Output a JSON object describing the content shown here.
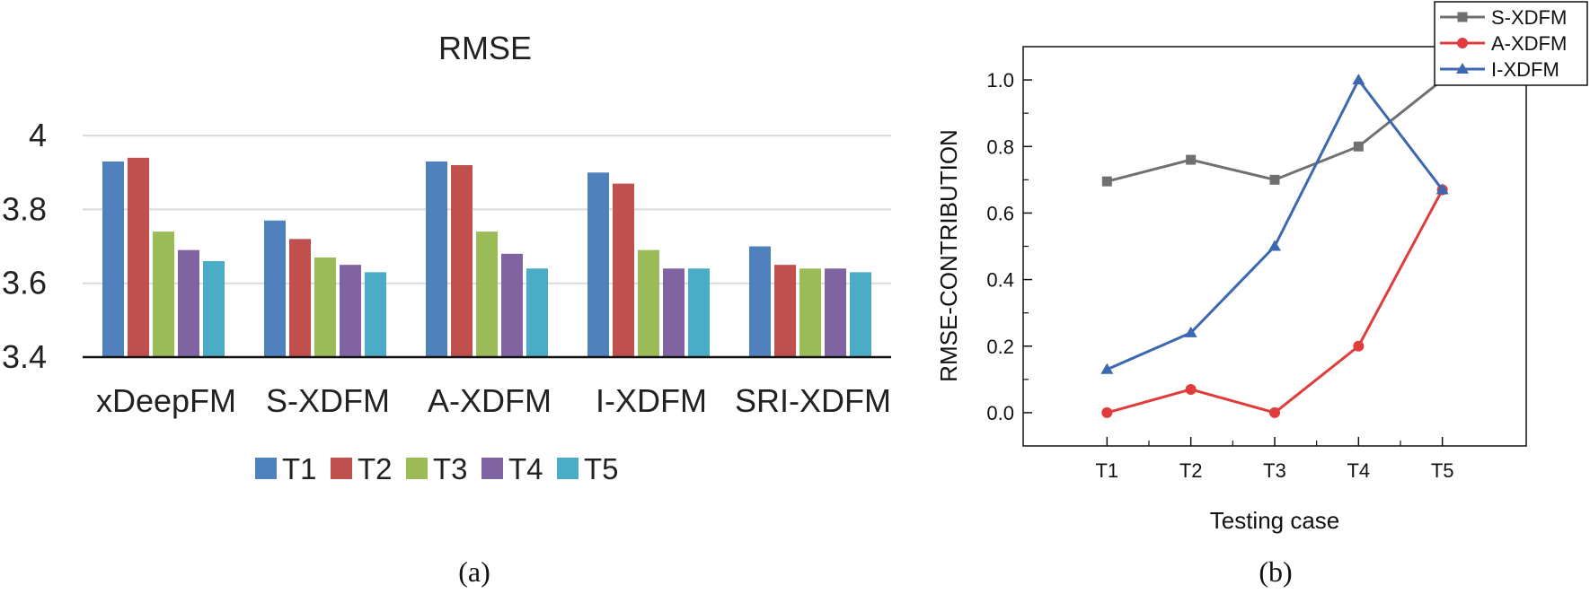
{
  "panels": {
    "a_caption": "(a)",
    "b_caption": "(b)"
  },
  "chart_data": [
    {
      "type": "bar",
      "title": "RMSE",
      "categories": [
        "xDeepFM",
        "S-XDFM",
        "A-XDFM",
        "I-XDFM",
        "SRI-XDFM"
      ],
      "series": [
        {
          "name": "T1",
          "color": "#4f81bd",
          "values": [
            3.93,
            3.77,
            3.93,
            3.9,
            3.7
          ]
        },
        {
          "name": "T2",
          "color": "#c0504d",
          "values": [
            3.94,
            3.72,
            3.92,
            3.87,
            3.65
          ]
        },
        {
          "name": "T3",
          "color": "#9bbb59",
          "values": [
            3.74,
            3.67,
            3.74,
            3.69,
            3.64
          ]
        },
        {
          "name": "T4",
          "color": "#8064a2",
          "values": [
            3.69,
            3.65,
            3.68,
            3.64,
            3.64
          ]
        },
        {
          "name": "T5",
          "color": "#4bacc6",
          "values": [
            3.66,
            3.63,
            3.64,
            3.64,
            3.63
          ]
        }
      ],
      "ylim": [
        3.4,
        4.1
      ],
      "yticks": [
        3.4,
        3.6,
        3.8,
        4.0
      ],
      "ytick_labels": [
        "3.4",
        "3.6",
        "3.8",
        "4"
      ],
      "grid": true,
      "legend_position": "bottom"
    },
    {
      "type": "line",
      "xlabel": "Testing case",
      "ylabel": "RMSE-CONTRIBUTION",
      "x": [
        "T1",
        "T2",
        "T3",
        "T4",
        "T5"
      ],
      "series": [
        {
          "name": "S-XDFM",
          "color": "#707070",
          "marker": "square",
          "values": [
            0.695,
            0.76,
            0.7,
            0.8,
            1.0
          ]
        },
        {
          "name": "A-XDFM",
          "color": "#e03c3c",
          "marker": "circle",
          "values": [
            0.0,
            0.07,
            0.0,
            0.2,
            0.67
          ]
        },
        {
          "name": "I-XDFM",
          "color": "#3b68b0",
          "marker": "triangle",
          "values": [
            0.13,
            0.24,
            0.5,
            1.0,
            0.67
          ]
        }
      ],
      "ylim": [
        -0.1,
        1.1
      ],
      "yticks": [
        0.0,
        0.2,
        0.4,
        0.6,
        0.8,
        1.0
      ],
      "ytick_labels": [
        "0.0",
        "0.2",
        "0.4",
        "0.6",
        "0.8",
        "1.0"
      ],
      "grid": false,
      "legend_position": "top-right"
    }
  ]
}
